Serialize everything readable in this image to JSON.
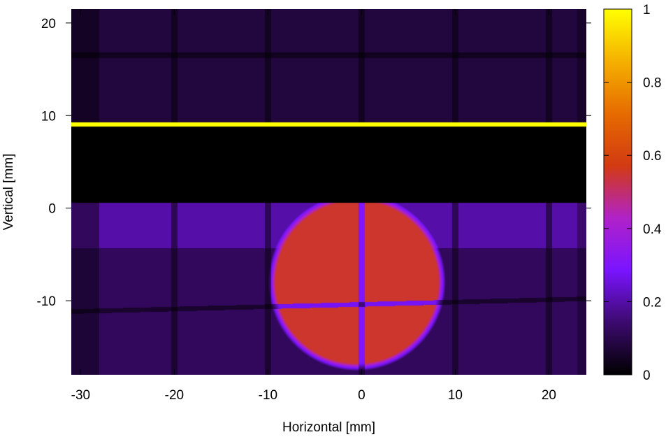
{
  "chart_data": {
    "type": "heatmap",
    "xlabel": "Horizontal [mm]",
    "ylabel": "Vertical [mm]",
    "xlim": [
      -31,
      24
    ],
    "ylim": [
      -18,
      21.5
    ],
    "x_ticks": [
      -30,
      -20,
      -10,
      0,
      10,
      20
    ],
    "x_tick_labels": [
      "-30",
      "-20",
      "-10",
      "0",
      "10",
      "20"
    ],
    "y_ticks": [
      -10,
      0,
      10,
      20
    ],
    "y_tick_labels": [
      "-10",
      "0",
      "10",
      "20"
    ],
    "colorbar": {
      "range": [
        0,
        1
      ],
      "ticks": [
        0,
        0.2,
        0.4,
        0.6,
        0.8,
        1
      ],
      "tick_labels": [
        "0",
        "0.2",
        "0.4",
        "0.6",
        "0.8",
        "1"
      ],
      "colormap": "gnuplot",
      "colors": [
        "#000000",
        "#3c0a6e",
        "#7a14ff",
        "#b022c8",
        "#d23a12",
        "#e66b00",
        "#f5b000",
        "#ffff00"
      ]
    },
    "regions": [
      {
        "name": "upper field",
        "x": [
          -31,
          24
        ],
        "y": [
          9,
          21.5
        ],
        "value": 0.08
      },
      {
        "name": "dark band",
        "x": [
          -31,
          24
        ],
        "y": [
          0.5,
          9
        ],
        "value": 0.0
      },
      {
        "name": "bright strip",
        "x": [
          -31,
          24
        ],
        "y": [
          8.8,
          9.3
        ],
        "value": 1.0
      },
      {
        "name": "horizontal band",
        "x": [
          -31,
          24
        ],
        "y": [
          -4.5,
          0.5
        ],
        "value": 0.2
      },
      {
        "name": "central beam spot",
        "center": [
          -0.5,
          -8
        ],
        "radii": [
          9.5,
          9.5
        ],
        "value": 0.53
      },
      {
        "name": "lower field",
        "x": [
          -31,
          24
        ],
        "y": [
          -18,
          -4.5
        ],
        "value": 0.12
      }
    ],
    "grid": false
  }
}
